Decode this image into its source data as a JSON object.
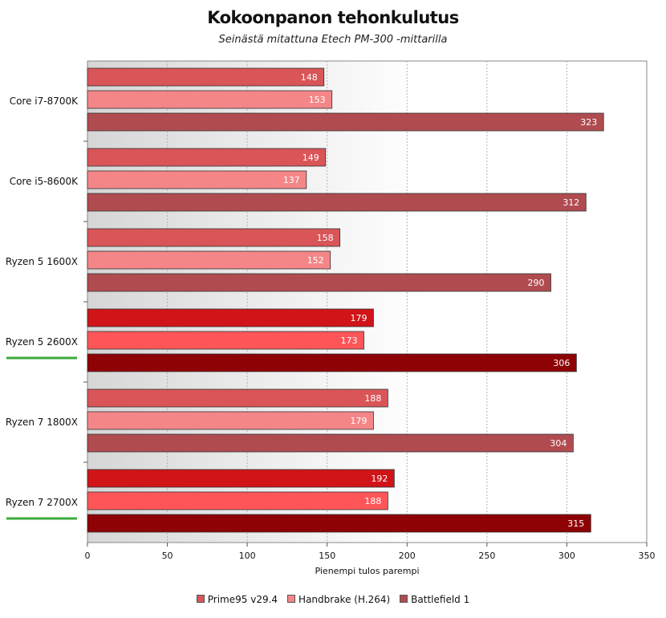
{
  "chart_data": {
    "type": "bar",
    "orientation": "horizontal",
    "title": "Kokoonpanon tehonkulutus",
    "subtitle": "Seinästä mitattuna Etech PM-300 -mittarilla",
    "xlabel": "Pienempi tulos parempi",
    "ylabel": "",
    "xlim": [
      0,
      350
    ],
    "xticks": [
      0,
      50,
      100,
      150,
      200,
      250,
      300,
      350
    ],
    "categories": [
      "Core i7-8700K",
      "Core i5-8600K",
      "Ryzen 5 1600X",
      "Ryzen 5 2600X",
      "Ryzen 7 1800X",
      "Ryzen 7 2700X"
    ],
    "highlighted": [
      false,
      false,
      false,
      true,
      false,
      true
    ],
    "series": [
      {
        "name": "Prime95 v29.4",
        "values": [
          148,
          149,
          158,
          179,
          188,
          192
        ],
        "color": "#d95558",
        "highlight_color": "#d01418"
      },
      {
        "name": "Handbrake (H.264)",
        "values": [
          153,
          137,
          152,
          173,
          179,
          188
        ],
        "color": "#f48688",
        "highlight_color": "#fe5658"
      },
      {
        "name": "Battlefield 1",
        "values": [
          323,
          312,
          290,
          306,
          304,
          315
        ],
        "color": "#b04c50",
        "highlight_color": "#8e0206"
      }
    ],
    "highlight_underline_color": "#3caa3c",
    "grid": true,
    "legend_position": "bottom"
  }
}
